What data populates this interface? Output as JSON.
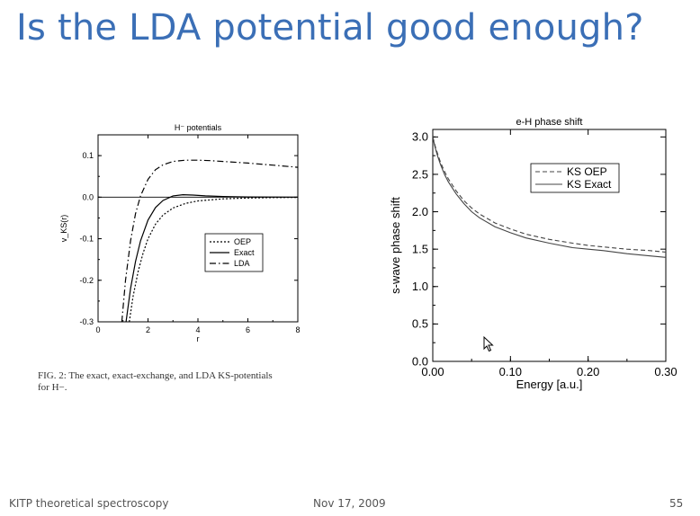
{
  "slide": {
    "title": "Is the LDA potential good enough?",
    "caption_line1": "FIG. 2: The exact, exact-exchange, and LDA KS-potentials",
    "caption_line2": "for H−.",
    "footer_left": "KITP theoretical spectroscopy",
    "footer_center": "Nov 17, 2009",
    "footer_right": "55",
    "cursor_icon": "mouse-pointer-icon"
  },
  "chart_data": [
    {
      "type": "line",
      "title": "H⁻ potentials",
      "xlabel": "r",
      "ylabel": "v_KS(r)",
      "xlim": [
        0,
        8
      ],
      "ylim": [
        -0.3,
        0.15
      ],
      "xticks": [
        0,
        2,
        4,
        6,
        8
      ],
      "yticks": [
        0.1,
        0.0,
        -0.1,
        -0.2,
        -0.3
      ],
      "ytick_labels": [
        "0.1",
        "0.0",
        "-0.1",
        "-0.2",
        "-0.3"
      ],
      "legend_position": "center-right",
      "series": [
        {
          "name": "OEP",
          "style": "dotted",
          "x": [
            1.25,
            1.4,
            1.6,
            1.8,
            2.0,
            2.3,
            2.6,
            3.0,
            3.5,
            4.0,
            5.0,
            6.0,
            7.0,
            8.0
          ],
          "y": [
            -0.3,
            -0.24,
            -0.18,
            -0.135,
            -0.1,
            -0.065,
            -0.043,
            -0.026,
            -0.015,
            -0.009,
            -0.004,
            -0.002,
            -0.001,
            -0.0005
          ]
        },
        {
          "name": "Exact",
          "style": "solid",
          "x": [
            1.12,
            1.3,
            1.5,
            1.7,
            2.0,
            2.3,
            2.6,
            3.0,
            3.4,
            3.8,
            4.3,
            5.0,
            6.0,
            7.0,
            8.0
          ],
          "y": [
            -0.3,
            -0.22,
            -0.155,
            -0.105,
            -0.055,
            -0.025,
            -0.008,
            0.003,
            0.006,
            0.005,
            0.003,
            0.0015,
            0.0005,
            0.0002,
            0.0
          ]
        },
        {
          "name": "LDA",
          "style": "dashdot",
          "x": [
            0.95,
            1.1,
            1.3,
            1.5,
            1.7,
            2.0,
            2.3,
            2.6,
            3.0,
            3.5,
            4.0,
            4.5,
            5.0,
            6.0,
            7.0,
            8.0
          ],
          "y": [
            -0.3,
            -0.2,
            -0.105,
            -0.04,
            0.003,
            0.043,
            0.066,
            0.078,
            0.086,
            0.089,
            0.089,
            0.088,
            0.086,
            0.082,
            0.077,
            0.072
          ]
        }
      ]
    },
    {
      "type": "line",
      "title": "e-H  phase shift",
      "xlabel": "Energy [a.u.]",
      "ylabel": "s-wave phase shift",
      "xlim": [
        0,
        0.3
      ],
      "ylim": [
        0,
        3.1
      ],
      "xticks": [
        0,
        0.1,
        0.2,
        0.3
      ],
      "xtick_labels": [
        "0.00",
        "0.10",
        "0.20",
        "0.30"
      ],
      "yticks": [
        0,
        0.5,
        1.0,
        1.5,
        2.0,
        2.5,
        3.0
      ],
      "ytick_labels": [
        "0.0",
        "0.5",
        "1.0",
        "1.5",
        "2.0",
        "2.5",
        "3.0"
      ],
      "legend_position": "top-right",
      "series": [
        {
          "name": "KS OEP",
          "style": "dashed",
          "x": [
            0.0,
            0.003,
            0.006,
            0.01,
            0.015,
            0.02,
            0.03,
            0.04,
            0.05,
            0.06,
            0.08,
            0.1,
            0.12,
            0.15,
            0.18,
            0.2,
            0.22,
            0.25,
            0.28,
            0.3
          ],
          "y": [
            3.0,
            2.88,
            2.78,
            2.66,
            2.54,
            2.44,
            2.28,
            2.15,
            2.05,
            1.97,
            1.85,
            1.77,
            1.7,
            1.63,
            1.58,
            1.55,
            1.53,
            1.5,
            1.48,
            1.46
          ]
        },
        {
          "name": "KS Exact",
          "style": "solid",
          "x": [
            0.0,
            0.003,
            0.006,
            0.01,
            0.015,
            0.02,
            0.03,
            0.04,
            0.05,
            0.06,
            0.08,
            0.1,
            0.12,
            0.15,
            0.18,
            0.2,
            0.22,
            0.25,
            0.28,
            0.3
          ],
          "y": [
            3.0,
            2.86,
            2.75,
            2.63,
            2.5,
            2.4,
            2.24,
            2.11,
            2.0,
            1.92,
            1.8,
            1.72,
            1.65,
            1.58,
            1.52,
            1.5,
            1.48,
            1.44,
            1.41,
            1.39
          ]
        }
      ]
    }
  ]
}
